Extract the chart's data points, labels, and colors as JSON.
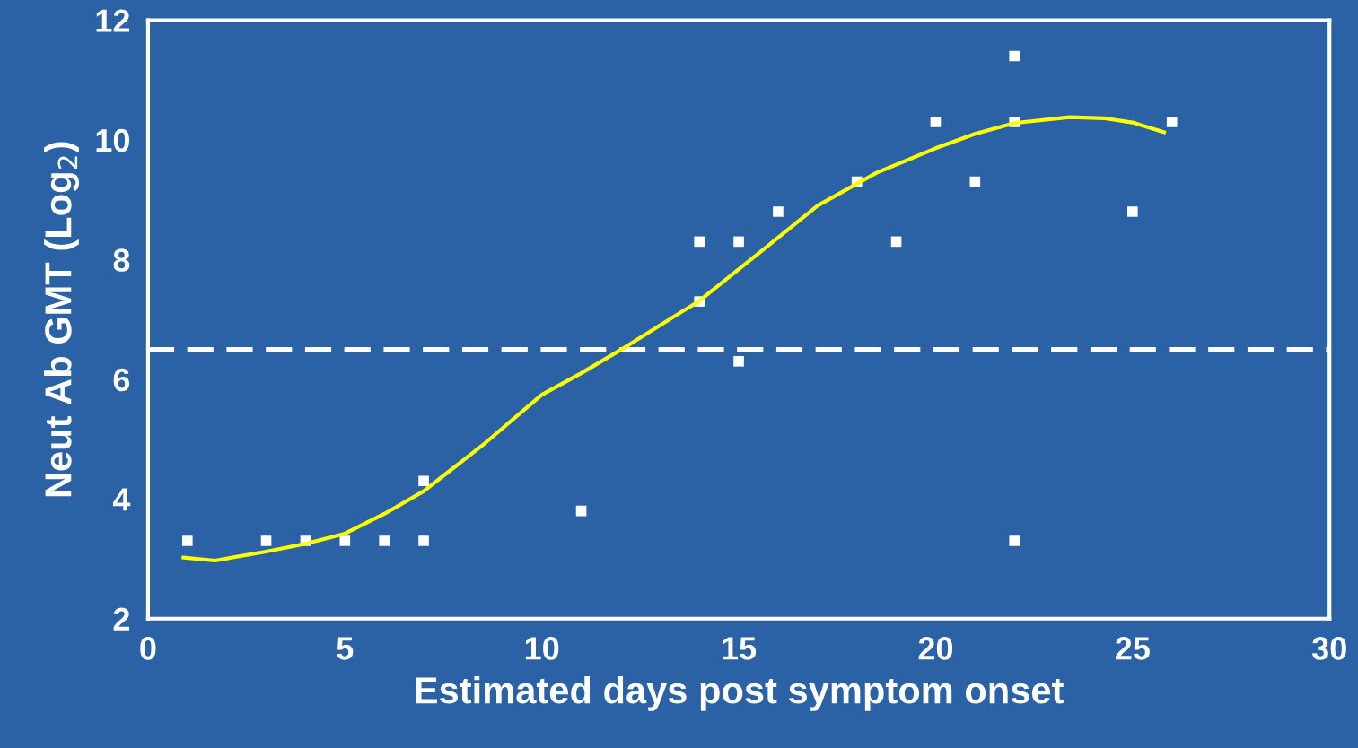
{
  "chart_data": {
    "type": "scatter",
    "xlabel": "Estimated days post symptom onset",
    "ylabel": "Neut Ab GMT (Log$_{2}$)",
    "xlim": [
      0,
      30
    ],
    "xticks": [
      0,
      5,
      10,
      15,
      20,
      25,
      30
    ],
    "ylim": [
      2,
      12
    ],
    "yticks": [
      2,
      4,
      6,
      8,
      10,
      12
    ],
    "series": [
      {
        "color": "#ffffff",
        "marker": "square",
        "x": [
          1,
          3,
          4,
          5,
          6,
          7,
          7,
          11,
          14,
          14,
          15,
          15,
          16,
          18,
          19,
          20,
          21,
          22,
          22,
          22,
          25,
          26
        ],
        "values": [
          3.3,
          3.3,
          3.3,
          3.3,
          3.3,
          3.3,
          4.3,
          3.8,
          8.3,
          7.3,
          8.3,
          6.3,
          8.8,
          9.3,
          8.3,
          10.3,
          9.3,
          10.3,
          3.3,
          11.4,
          8.8,
          10.3
        ]
      },
      {
        "type": "line",
        "marker": "none",
        "color": "#ffff00",
        "x": [
          0.9,
          1.7,
          3,
          4,
          5,
          6,
          7,
          8.5,
          10,
          11,
          12,
          13,
          14,
          15.5,
          17,
          18.5,
          20,
          21,
          22,
          23.4,
          24.3,
          25,
          25.8
        ],
        "values": [
          3.02,
          2.97,
          3.12,
          3.25,
          3.42,
          3.75,
          4.13,
          4.9,
          5.74,
          6.1,
          6.49,
          6.9,
          7.31,
          8.1,
          8.9,
          9.45,
          9.86,
          10.1,
          10.28,
          10.38,
          10.36,
          10.29,
          10.13
        ]
      }
    ],
    "ref_lines": [
      {
        "axis": "y",
        "value": 6.5,
        "color": "#ffffff",
        "line_style": "dashed"
      }
    ]
  }
}
